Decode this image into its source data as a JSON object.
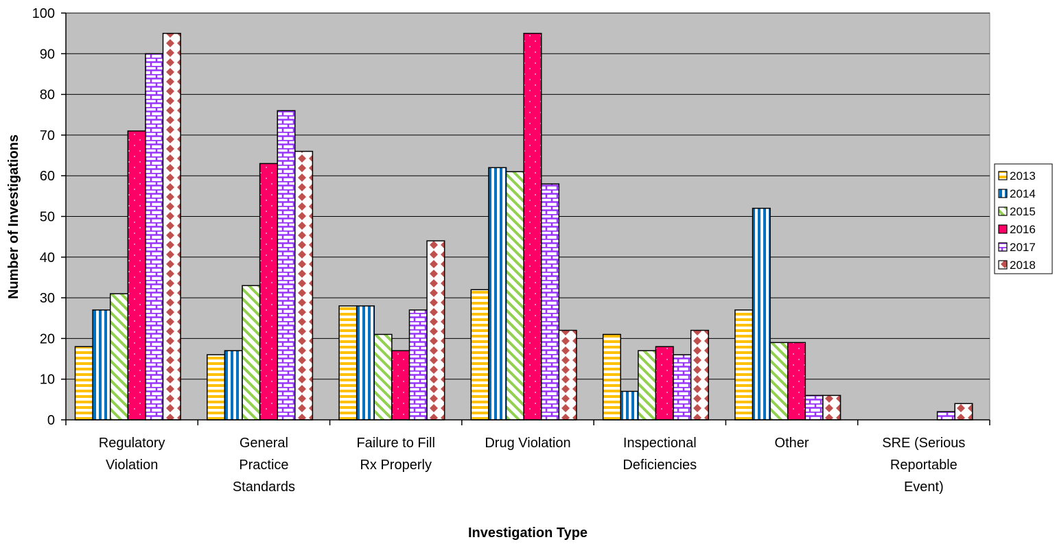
{
  "chart_data": {
    "type": "bar",
    "xlabel": "Investigation Type",
    "ylabel": "Number of Investigations",
    "ylim": [
      0,
      100
    ],
    "yticks": [
      0,
      10,
      20,
      30,
      40,
      50,
      60,
      70,
      80,
      90,
      100
    ],
    "grid": true,
    "legend_position": "right",
    "categories": [
      [
        "Regulatory",
        "Violation"
      ],
      [
        "General",
        "Practice",
        "Standards"
      ],
      [
        "Failure to Fill",
        "Rx Properly"
      ],
      [
        "Drug Violation"
      ],
      [
        "Inspectional",
        "Deficiencies"
      ],
      [
        "Other"
      ],
      [
        "SRE (Serious",
        "Reportable",
        "Event)"
      ]
    ],
    "series": [
      {
        "name": "2013",
        "values": [
          18,
          16,
          28,
          32,
          21,
          27,
          0
        ],
        "color": "#FFC000",
        "pattern": "horizontal-stripes"
      },
      {
        "name": "2014",
        "values": [
          27,
          17,
          28,
          62,
          7,
          52,
          0
        ],
        "color": "#0070C0",
        "pattern": "vertical-stripes"
      },
      {
        "name": "2015",
        "values": [
          31,
          33,
          21,
          61,
          17,
          19,
          0
        ],
        "color": "#92D050",
        "pattern": "diagonal-stripes"
      },
      {
        "name": "2016",
        "values": [
          71,
          63,
          17,
          95,
          18,
          19,
          0
        ],
        "color": "#FF0066",
        "pattern": "dots"
      },
      {
        "name": "2017",
        "values": [
          90,
          76,
          27,
          58,
          16,
          6,
          2
        ],
        "color": "#9933FF",
        "pattern": "bricks"
      },
      {
        "name": "2018",
        "values": [
          95,
          66,
          44,
          22,
          22,
          6,
          4
        ],
        "color": "#C0504D",
        "pattern": "diamonds"
      }
    ]
  }
}
